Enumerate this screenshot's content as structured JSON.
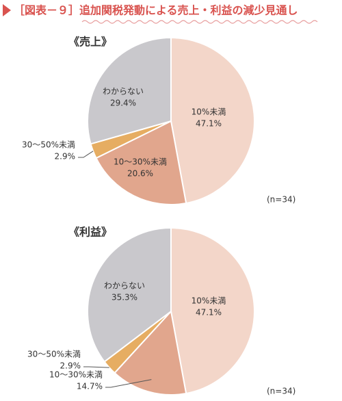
{
  "title": "［図表－９］追加関税発動による売上・利益の減少見通し",
  "chart_data": [
    {
      "type": "pie",
      "title": "《売上》",
      "categories": [
        "10%未満",
        "10～30%未満",
        "30～50%未満",
        "わからない"
      ],
      "values": [
        47.1,
        20.6,
        2.9,
        29.4
      ],
      "value_labels": [
        "47.1%",
        "20.6%",
        "2.9%",
        "29.4%"
      ],
      "colors": [
        "#f3d6c9",
        "#e1a68d",
        "#e6ad62",
        "#c9c8cc"
      ],
      "note": "(n=34)"
    },
    {
      "type": "pie",
      "title": "《利益》",
      "categories": [
        "10%未満",
        "10～30%未満",
        "30～50%未満",
        "わからない"
      ],
      "values": [
        47.1,
        14.7,
        2.9,
        35.3
      ],
      "value_labels": [
        "47.1%",
        "14.7%",
        "2.9%",
        "35.3%"
      ],
      "colors": [
        "#f3d6c9",
        "#e1a68d",
        "#e6ad62",
        "#c9c8cc"
      ],
      "note": "(n=34)"
    }
  ]
}
